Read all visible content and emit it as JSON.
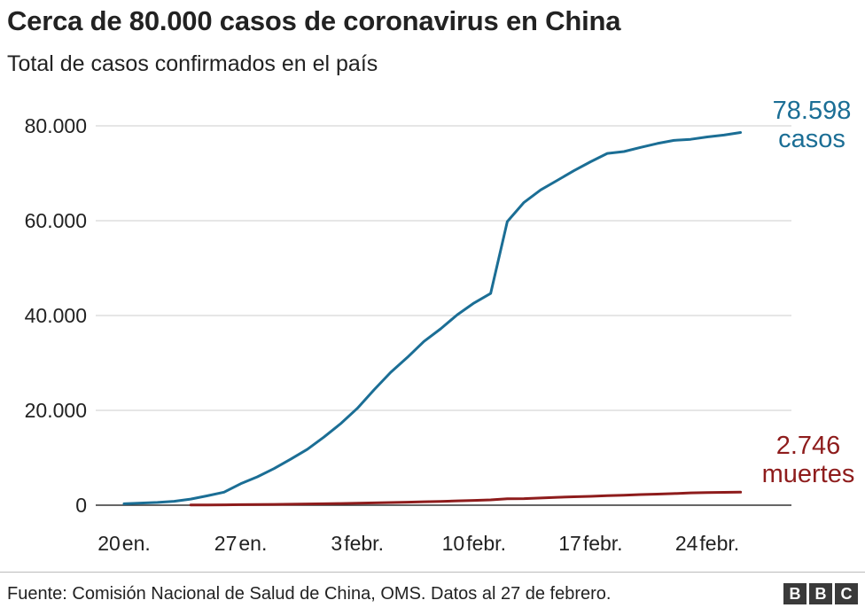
{
  "chart_data": {
    "type": "line",
    "title": "Cerca de 80.000 casos de coronavirus en China",
    "subtitle": "Total de casos confirmados en el país",
    "ylim": [
      0,
      80000
    ],
    "y_ticks": [
      {
        "value": 0,
        "label": "0"
      },
      {
        "value": 20000,
        "label": "20.000"
      },
      {
        "value": 40000,
        "label": "40.000"
      },
      {
        "value": 60000,
        "label": "60.000"
      },
      {
        "value": 80000,
        "label": "80.000"
      }
    ],
    "x_ticks": [
      {
        "date": "2020-01-20",
        "num": "20",
        "month": "en."
      },
      {
        "date": "2020-01-27",
        "num": "27",
        "month": "en."
      },
      {
        "date": "2020-02-03",
        "num": "3",
        "month": "febr."
      },
      {
        "date": "2020-02-10",
        "num": "10",
        "month": "febr."
      },
      {
        "date": "2020-02-17",
        "num": "17",
        "month": "febr."
      },
      {
        "date": "2020-02-24",
        "num": "24",
        "month": "febr."
      }
    ],
    "grid": true,
    "series": [
      {
        "name": "casos",
        "color": "#1b6e95",
        "end_value": "78.598",
        "end_unit": "casos",
        "points": [
          [
            "2020-01-20",
            291
          ],
          [
            "2020-01-21",
            440
          ],
          [
            "2020-01-22",
            571
          ],
          [
            "2020-01-23",
            830
          ],
          [
            "2020-01-24",
            1287
          ],
          [
            "2020-01-25",
            1975
          ],
          [
            "2020-01-26",
            2744
          ],
          [
            "2020-01-27",
            4515
          ],
          [
            "2020-01-28",
            5974
          ],
          [
            "2020-01-29",
            7711
          ],
          [
            "2020-01-30",
            9692
          ],
          [
            "2020-01-31",
            11791
          ],
          [
            "2020-02-01",
            14380
          ],
          [
            "2020-02-02",
            17205
          ],
          [
            "2020-02-03",
            20438
          ],
          [
            "2020-02-04",
            24324
          ],
          [
            "2020-02-05",
            28018
          ],
          [
            "2020-02-06",
            31161
          ],
          [
            "2020-02-07",
            34546
          ],
          [
            "2020-02-08",
            37198
          ],
          [
            "2020-02-09",
            40171
          ],
          [
            "2020-02-10",
            42638
          ],
          [
            "2020-02-11",
            44653
          ],
          [
            "2020-02-12",
            59804
          ],
          [
            "2020-02-13",
            63851
          ],
          [
            "2020-02-14",
            66492
          ],
          [
            "2020-02-15",
            68500
          ],
          [
            "2020-02-16",
            70548
          ],
          [
            "2020-02-17",
            72436
          ],
          [
            "2020-02-18",
            74185
          ],
          [
            "2020-02-19",
            74576
          ],
          [
            "2020-02-20",
            75465
          ],
          [
            "2020-02-21",
            76288
          ],
          [
            "2020-02-22",
            76936
          ],
          [
            "2020-02-23",
            77150
          ],
          [
            "2020-02-24",
            77658
          ],
          [
            "2020-02-25",
            78064
          ],
          [
            "2020-02-26",
            78598
          ]
        ]
      },
      {
        "name": "muertes",
        "color": "#8e1c1c",
        "end_value": "2.746",
        "end_unit": "muertes",
        "points": [
          [
            "2020-01-24",
            41
          ],
          [
            "2020-01-25",
            56
          ],
          [
            "2020-01-26",
            80
          ],
          [
            "2020-01-27",
            106
          ],
          [
            "2020-01-28",
            132
          ],
          [
            "2020-01-29",
            170
          ],
          [
            "2020-01-30",
            213
          ],
          [
            "2020-01-31",
            259
          ],
          [
            "2020-02-01",
            304
          ],
          [
            "2020-02-02",
            361
          ],
          [
            "2020-02-03",
            425
          ],
          [
            "2020-02-04",
            490
          ],
          [
            "2020-02-05",
            563
          ],
          [
            "2020-02-06",
            636
          ],
          [
            "2020-02-07",
            722
          ],
          [
            "2020-02-08",
            811
          ],
          [
            "2020-02-09",
            908
          ],
          [
            "2020-02-10",
            1016
          ],
          [
            "2020-02-11",
            1113
          ],
          [
            "2020-02-12",
            1367
          ],
          [
            "2020-02-13",
            1380
          ],
          [
            "2020-02-14",
            1523
          ],
          [
            "2020-02-15",
            1665
          ],
          [
            "2020-02-16",
            1770
          ],
          [
            "2020-02-17",
            1868
          ],
          [
            "2020-02-18",
            2004
          ],
          [
            "2020-02-19",
            2118
          ],
          [
            "2020-02-20",
            2236
          ],
          [
            "2020-02-21",
            2345
          ],
          [
            "2020-02-22",
            2442
          ],
          [
            "2020-02-23",
            2592
          ],
          [
            "2020-02-24",
            2663
          ],
          [
            "2020-02-25",
            2715
          ],
          [
            "2020-02-26",
            2746
          ]
        ]
      }
    ]
  },
  "footer": {
    "source": "Fuente: Comisión Nacional de Salud de China, OMS. Datos al 27 de febrero.",
    "logo_letters": [
      "B",
      "B",
      "C"
    ]
  }
}
